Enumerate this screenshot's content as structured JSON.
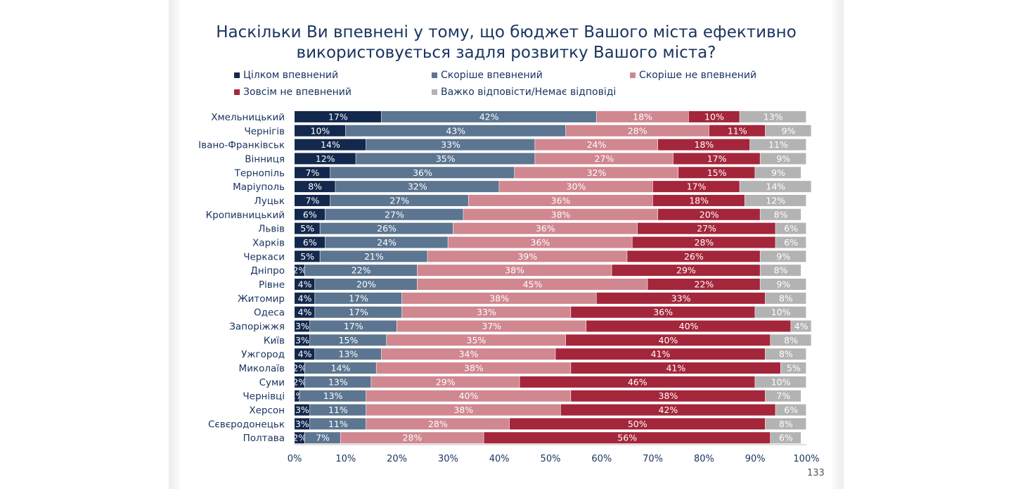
{
  "title_line1": "Наскільки Ви впевнені у тому, що бюджет Вашого міста ефективно",
  "title_line2": "використовується задля розвитку Вашого міста?",
  "page_number": "133",
  "colors": {
    "s1": "#13284d",
    "s2": "#5c7590",
    "s3": "#d08790",
    "s4": "#a4263b",
    "s5": "#b3b3b3"
  },
  "chart_data": {
    "type": "bar",
    "orientation": "horizontal",
    "stacked": true,
    "title": "Наскільки Ви впевнені у тому, що бюджет Вашого міста ефективно використовується задля розвитку Вашого міста?",
    "xlim": [
      0,
      100
    ],
    "xticks": [
      "0%",
      "10%",
      "20%",
      "30%",
      "40%",
      "50%",
      "60%",
      "70%",
      "80%",
      "90%",
      "100%"
    ],
    "legend_position": "top",
    "categories": [
      "Хмельницький",
      "Чернігів",
      "Івано-Франківськ",
      "Вінниця",
      "Тернопіль",
      "Маріуполь",
      "Луцьк",
      "Кропивницький",
      "Львів",
      "Харків",
      "Черкаси",
      "Дніпро",
      "Рівне",
      "Житомир",
      "Одеса",
      "Запоріжжя",
      "Київ",
      "Ужгород",
      "Миколаїв",
      "Суми",
      "Чернівці",
      "Херсон",
      "Сєвєродонецьк",
      "Полтава"
    ],
    "series": [
      {
        "name": "Цілком впевнений",
        "values": [
          17,
          10,
          14,
          12,
          7,
          8,
          7,
          6,
          5,
          6,
          5,
          2,
          4,
          4,
          4,
          3,
          3,
          4,
          2,
          2,
          1,
          3,
          3,
          2
        ]
      },
      {
        "name": "Скоріше впевнений",
        "values": [
          42,
          43,
          33,
          35,
          36,
          32,
          27,
          27,
          26,
          24,
          21,
          22,
          20,
          17,
          17,
          17,
          15,
          13,
          14,
          13,
          13,
          11,
          11,
          7
        ]
      },
      {
        "name": "Скоріше не впевнений",
        "values": [
          18,
          28,
          24,
          27,
          32,
          30,
          36,
          38,
          36,
          36,
          39,
          38,
          45,
          38,
          33,
          37,
          35,
          34,
          38,
          29,
          40,
          38,
          28,
          28
        ]
      },
      {
        "name": "Зовсім не впевнений",
        "values": [
          10,
          11,
          18,
          17,
          15,
          17,
          18,
          20,
          27,
          28,
          26,
          29,
          22,
          33,
          36,
          40,
          40,
          41,
          41,
          46,
          38,
          42,
          50,
          56
        ]
      },
      {
        "name": "Важко відповісти/Немає відповіді",
        "values": [
          13,
          9,
          11,
          9,
          9,
          14,
          12,
          8,
          6,
          6,
          9,
          8,
          9,
          8,
          10,
          4,
          8,
          8,
          5,
          10,
          7,
          6,
          8,
          6
        ]
      }
    ]
  }
}
